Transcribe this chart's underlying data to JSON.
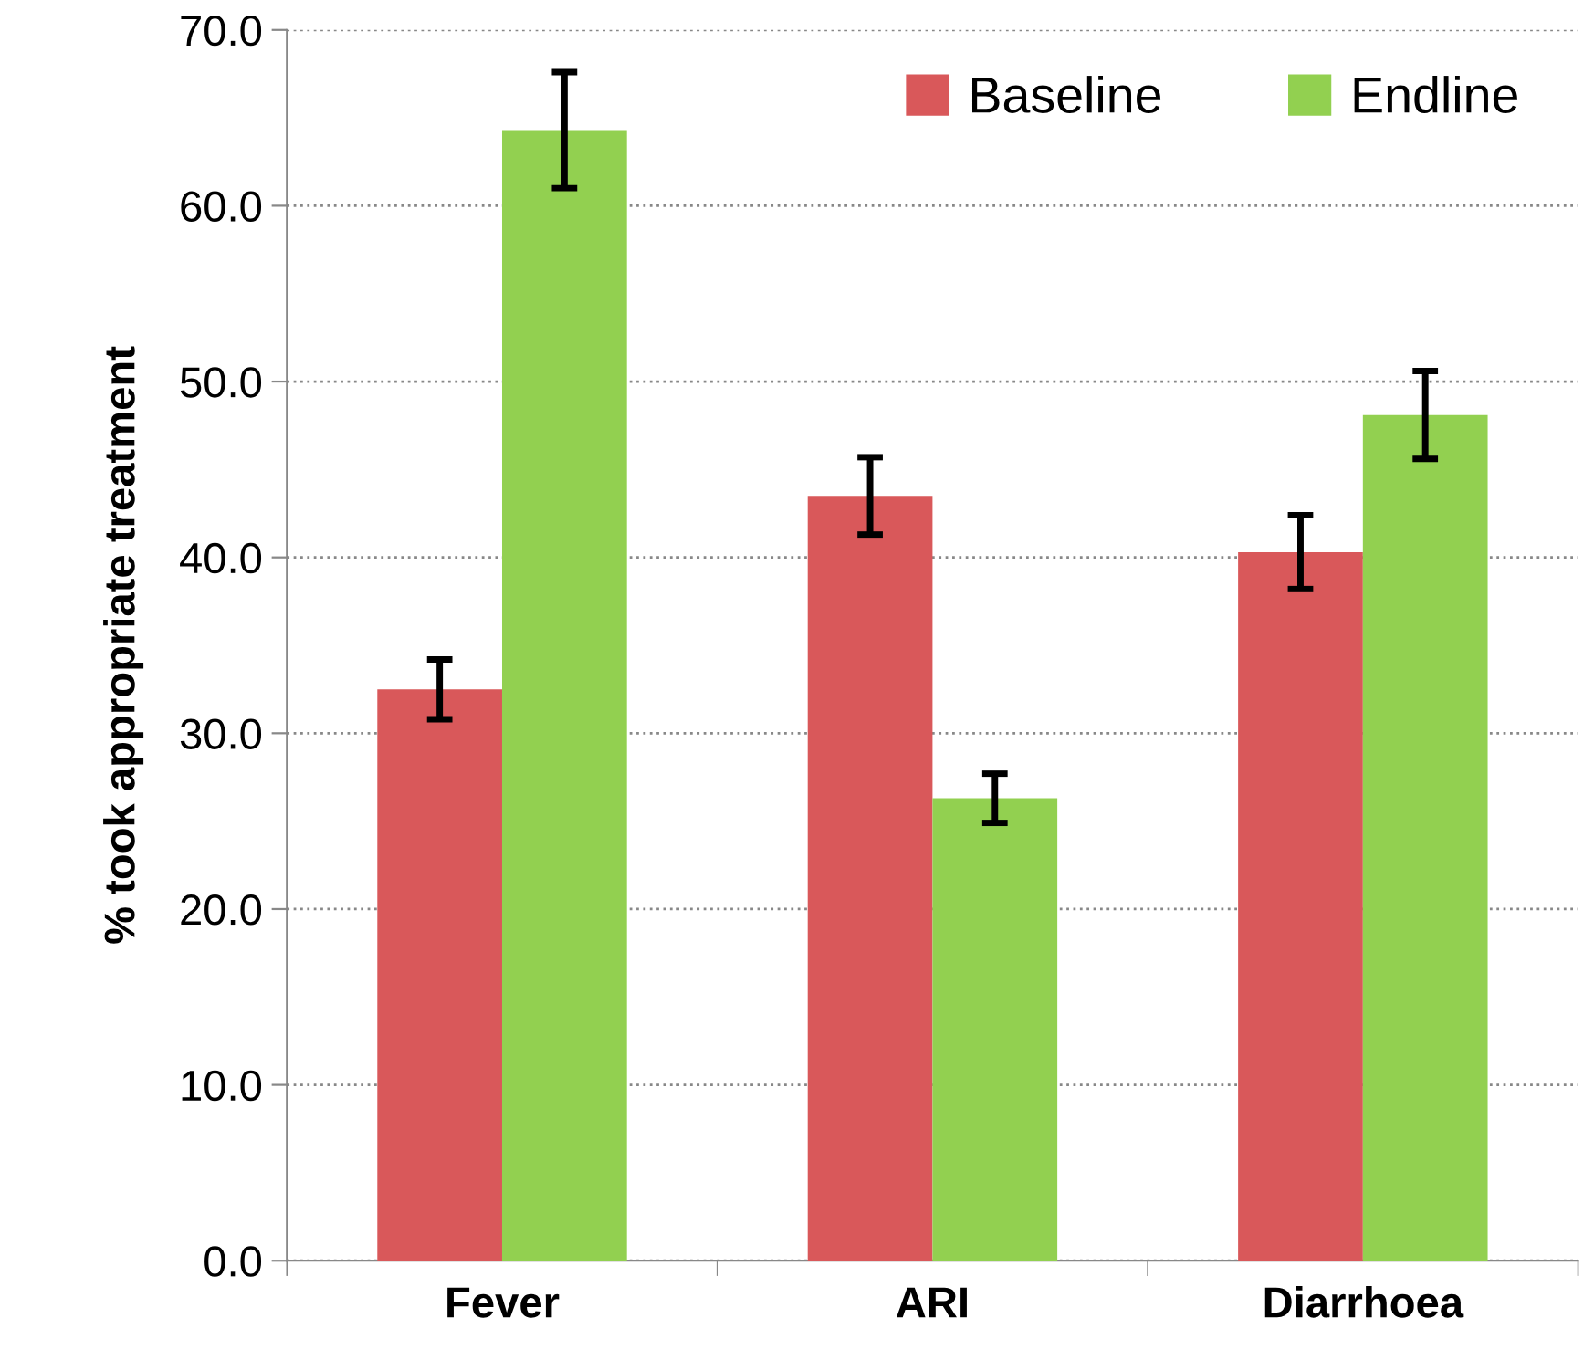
{
  "chart_data": {
    "type": "bar",
    "ylabel": "% took appropriate treatment",
    "categories": [
      "Fever",
      "ARI",
      "Diarrhoea"
    ],
    "series": [
      {
        "name": "Baseline",
        "color": "#d9585a",
        "values": [
          32.5,
          43.5,
          40.3
        ],
        "errors": [
          1.7,
          2.2,
          2.1
        ]
      },
      {
        "name": "Endline",
        "color": "#92d050",
        "values": [
          64.3,
          26.3,
          48.1
        ],
        "errors": [
          3.3,
          1.4,
          2.5
        ]
      }
    ],
    "ylim": [
      0,
      70
    ],
    "yticks": [
      {
        "value": 0,
        "label": "0.0"
      },
      {
        "value": 10,
        "label": "10.0"
      },
      {
        "value": 20,
        "label": "20.0"
      },
      {
        "value": 30,
        "label": "30.0"
      },
      {
        "value": 40,
        "label": "40.0"
      },
      {
        "value": 50,
        "label": "50.0"
      },
      {
        "value": 60,
        "label": "60.0"
      },
      {
        "value": 70,
        "label": "70.0"
      }
    ],
    "grid": "y",
    "legend": "top right"
  }
}
